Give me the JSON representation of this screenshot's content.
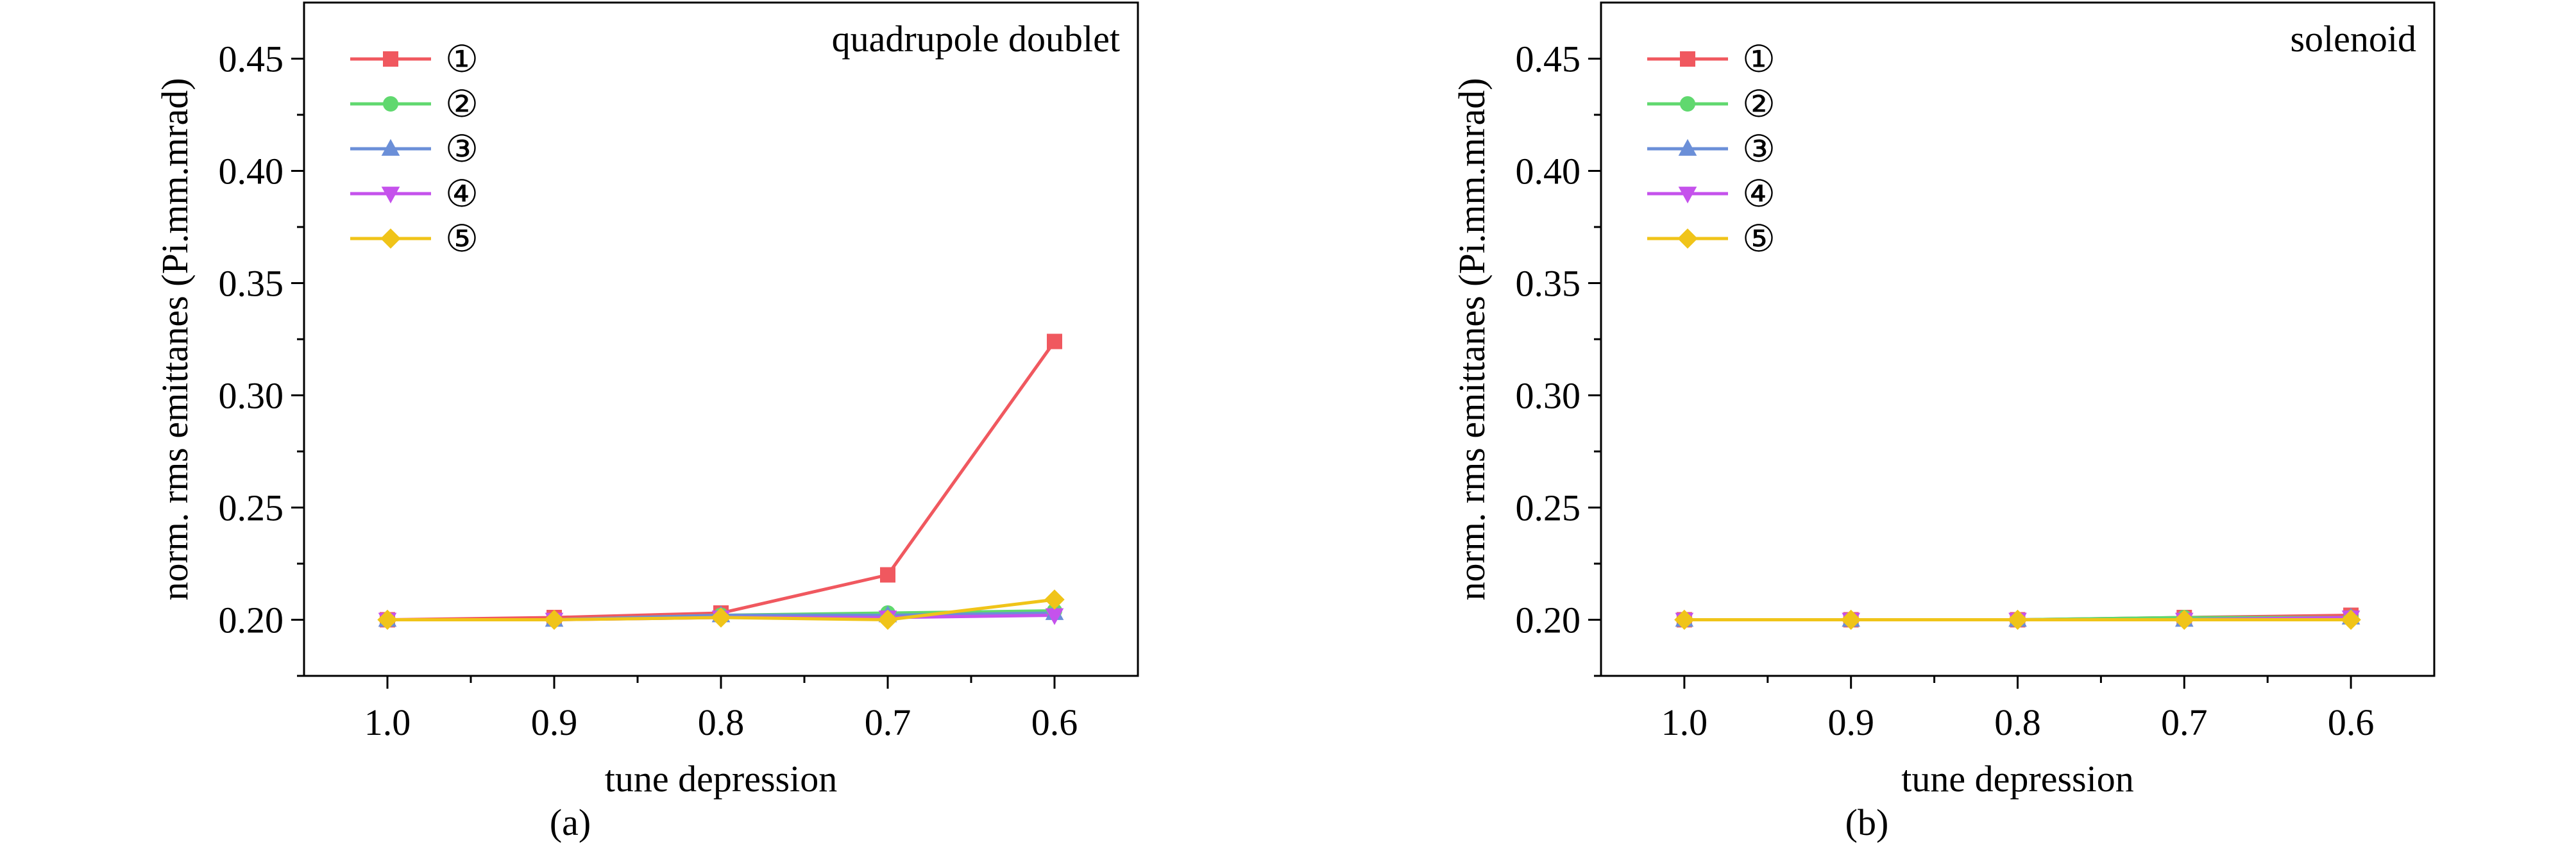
{
  "chart_data": [
    {
      "type": "line",
      "panel": "a",
      "caption": "(a)",
      "title": "quadrupole doublet",
      "xlabel": "tune depression",
      "ylabel": "norm. rms emittanes (Pi.mm.mrad)",
      "categories": [
        "1.0",
        "0.9",
        "0.8",
        "0.7",
        "0.6"
      ],
      "yticks": [
        "0.20",
        "0.25",
        "0.30",
        "0.35",
        "0.40",
        "0.45"
      ],
      "ylim": [
        0.175,
        0.475
      ],
      "legend_position": "top-left",
      "series": [
        {
          "name": "①",
          "color": "#f0585f",
          "marker": "square",
          "values": [
            0.2,
            0.201,
            0.203,
            0.22,
            0.324
          ]
        },
        {
          "name": "②",
          "color": "#60d86f",
          "marker": "circle",
          "values": [
            0.2,
            0.2,
            0.202,
            0.203,
            0.204
          ]
        },
        {
          "name": "③",
          "color": "#6b8fd8",
          "marker": "triangle-up",
          "values": [
            0.2,
            0.2,
            0.202,
            0.202,
            0.203
          ]
        },
        {
          "name": "④",
          "color": "#c552ec",
          "marker": "triangle-down",
          "values": [
            0.2,
            0.2,
            0.201,
            0.201,
            0.202
          ]
        },
        {
          "name": "⑤",
          "color": "#f0c419",
          "marker": "diamond",
          "values": [
            0.2,
            0.2,
            0.201,
            0.2,
            0.209
          ]
        }
      ]
    },
    {
      "type": "line",
      "panel": "b",
      "caption": "(b)",
      "title": "solenoid",
      "xlabel": "tune depression",
      "ylabel": "norm. rms emittanes (Pi.mm.mrad)",
      "categories": [
        "1.0",
        "0.9",
        "0.8",
        "0.7",
        "0.6"
      ],
      "yticks": [
        "0.20",
        "0.25",
        "0.30",
        "0.35",
        "0.40",
        "0.45"
      ],
      "ylim": [
        0.175,
        0.475
      ],
      "legend_position": "top-left",
      "series": [
        {
          "name": "①",
          "color": "#f0585f",
          "marker": "square",
          "values": [
            0.2,
            0.2,
            0.2,
            0.201,
            0.202
          ]
        },
        {
          "name": "②",
          "color": "#60d86f",
          "marker": "circle",
          "values": [
            0.2,
            0.2,
            0.2,
            0.201,
            0.201
          ]
        },
        {
          "name": "③",
          "color": "#6b8fd8",
          "marker": "triangle-up",
          "values": [
            0.2,
            0.2,
            0.2,
            0.2,
            0.201
          ]
        },
        {
          "name": "④",
          "color": "#c552ec",
          "marker": "triangle-down",
          "values": [
            0.2,
            0.2,
            0.2,
            0.2,
            0.201
          ]
        },
        {
          "name": "⑤",
          "color": "#f0c419",
          "marker": "diamond",
          "values": [
            0.2,
            0.2,
            0.2,
            0.2,
            0.2
          ]
        }
      ]
    }
  ]
}
